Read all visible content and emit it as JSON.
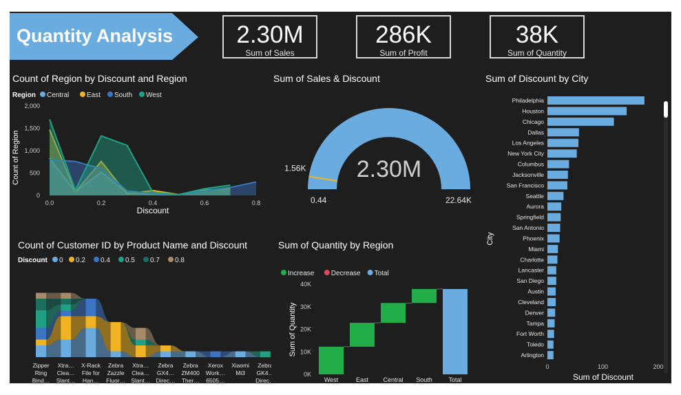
{
  "page": {
    "title": "Quantity Analysis"
  },
  "kpis": [
    {
      "value": "2.30M",
      "label": "Sum of Sales"
    },
    {
      "value": "286K",
      "label": "Sum of Profit"
    },
    {
      "value": "38K",
      "label": "Sum of Quantity"
    }
  ],
  "colors": {
    "background": "#1e1e1e",
    "banner": "#6aace0",
    "central": "#6aace0",
    "east": "#f0b323",
    "south": "#3b74c2",
    "west": "#21a184",
    "increase": "#21ad47",
    "decrease": "#e0475a",
    "total": "#6aace0",
    "bar": "#6aace0"
  },
  "chart_data": [
    {
      "type": "area",
      "title": "Count of Region by Discount and Region",
      "xlabel": "Discount",
      "ylabel": "Count of Region",
      "legend_title": "Region",
      "xticks": [
        "0.0",
        "0.2",
        "0.4",
        "0.6",
        "0.8"
      ],
      "yticks": [
        "0",
        "500",
        "1,000",
        "1,500",
        "2,000"
      ],
      "xlim": [
        0,
        0.8
      ],
      "ylim": [
        0,
        2000
      ],
      "series": [
        {
          "name": "Central",
          "x": [
            0,
            0.1,
            0.2,
            0.3,
            0.4,
            0.5,
            0.6,
            0.7
          ],
          "y": [
            830,
            80,
            520,
            60,
            30,
            20,
            120,
            160
          ]
        },
        {
          "name": "East",
          "x": [
            0,
            0.1,
            0.2,
            0.3,
            0.4,
            0.5,
            0.6,
            0.7
          ],
          "y": [
            1470,
            80,
            760,
            30,
            110,
            20,
            110,
            150
          ]
        },
        {
          "name": "South",
          "x": [
            0,
            0.1,
            0.2,
            0.3,
            0.4,
            0.5,
            0.6,
            0.7,
            0.8
          ],
          "y": [
            800,
            760,
            600,
            100,
            40,
            20,
            100,
            180,
            300
          ]
        },
        {
          "name": "West",
          "x": [
            0,
            0.1,
            0.2,
            0.3,
            0.4,
            0.5,
            0.6,
            0.7
          ],
          "y": [
            1700,
            120,
            1330,
            1120,
            70,
            20,
            150,
            230
          ]
        }
      ]
    },
    {
      "type": "gauge",
      "title": "Sum of Sales & Discount",
      "value": 2300000,
      "value_label": "2.30M",
      "min": 0.44,
      "max": 22.64,
      "min_label": "0.44",
      "max_label": "22.64K",
      "target": 1.56,
      "target_label": "1.56K"
    },
    {
      "type": "ribbon",
      "title": "Count of Customer ID by Product Name and Discount",
      "xlabel": "Product Name",
      "legend_title": "Discount",
      "legend": [
        "0",
        "0.2",
        "0.4",
        "0.5",
        "0.7",
        "0.8"
      ],
      "categories": [
        [
          "Zipper",
          "Ring",
          "Bind…"
        ],
        [
          "Xtra…",
          "Clea…",
          "Slant…"
        ],
        [
          "X-Rack",
          "File for",
          "Han…"
        ],
        [
          "Zebra",
          "Zazzle",
          "Fluor…"
        ],
        [
          "Xtra…",
          "Clea…",
          "Slant…"
        ],
        [
          "Zebra",
          "GX4…",
          "Direc…"
        ],
        [
          "Zebra",
          "ZM400",
          "Ther…"
        ],
        [
          "Xerox",
          "Work…",
          "6505…"
        ],
        [
          "Xiaomi",
          "Mi3"
        ],
        [
          "Zebra",
          "GK4…",
          "Direc…"
        ]
      ],
      "series": [
        {
          "name": "0",
          "values": [
            2,
            3,
            5,
            1,
            0,
            1,
            1,
            0,
            1,
            0
          ]
        },
        {
          "name": "0.2",
          "values": [
            1,
            4,
            2,
            5,
            2,
            1,
            0,
            0,
            0,
            0
          ]
        },
        {
          "name": "0.4",
          "values": [
            2,
            1,
            3,
            0,
            0,
            0,
            0,
            1,
            0,
            0
          ]
        },
        {
          "name": "0.5",
          "values": [
            3,
            1,
            0,
            0,
            1,
            0,
            0,
            0,
            0,
            1
          ]
        },
        {
          "name": "0.7",
          "values": [
            2,
            1,
            0,
            0,
            0,
            0,
            0,
            0,
            0,
            0
          ]
        },
        {
          "name": "0.8",
          "values": [
            1,
            1,
            0,
            0,
            2,
            0,
            0,
            0,
            0,
            0
          ]
        }
      ]
    },
    {
      "type": "waterfall",
      "title": "Sum of Quantity by Region",
      "xlabel": "Region",
      "ylabel": "Sum of Quantity",
      "legend": [
        "Increase",
        "Decrease",
        "Total"
      ],
      "categories": [
        "West",
        "East",
        "Central",
        "South",
        "Total"
      ],
      "values": [
        12266,
        10618,
        8780,
        6209,
        37873
      ],
      "yticks": [
        "0K",
        "10K",
        "20K",
        "30K",
        "40K"
      ],
      "ylim": [
        0,
        40000
      ]
    },
    {
      "type": "bar",
      "orientation": "horizontal",
      "title": "Sum of Discount by City",
      "xlabel": "Sum of Discount",
      "ylabel": "City",
      "xticks": [
        "0",
        "100",
        "200"
      ],
      "xlim": [
        0,
        200
      ],
      "categories": [
        "Philadelphia",
        "Houston",
        "Chicago",
        "Dallas",
        "Los Angeles",
        "New York City",
        "Columbus",
        "Jacksonville",
        "San Francisco",
        "Seattle",
        "Aurora",
        "Springfield",
        "San Antonio",
        "Phoenix",
        "Miami",
        "Charlotte",
        "Lancaster",
        "San Diego",
        "Austin",
        "Cleveland",
        "Denver",
        "Tampa",
        "Fort Worth",
        "Toledo",
        "Arlington"
      ],
      "values": [
        175,
        143,
        120,
        57,
        56,
        53,
        39,
        37,
        36,
        29,
        25,
        24,
        23,
        22,
        19,
        18,
        16,
        16,
        15,
        15,
        14,
        13,
        12,
        11,
        11
      ]
    }
  ]
}
